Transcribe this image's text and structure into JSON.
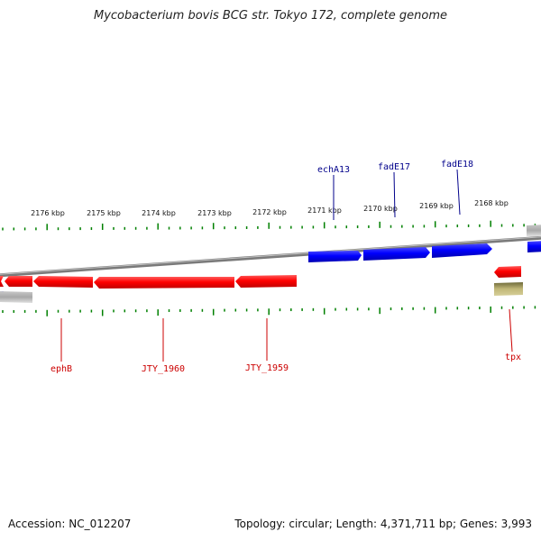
{
  "title": "Mycobacterium bovis BCG str. Tokyo 172, complete genome",
  "footer": {
    "accession": "Accession: NC_012207",
    "summary": "Topology: circular; Length: 4,371,711 bp; Genes: 3,993"
  },
  "colors": {
    "forward_gene": "#0000ff",
    "reverse_gene": "#ff0000",
    "backbone": "#808080",
    "ticks": "#008000",
    "other_feature": "#b8b070",
    "gray_feature": "#b0b0b0",
    "forward_label": "#00008b",
    "reverse_label": "#cc0000"
  },
  "ticks": {
    "major_labels": [
      "2176 kbp",
      "2175 kbp",
      "2174 kbp",
      "2173 kbp",
      "2172 kbp",
      "2171 kbp",
      "2170 kbp",
      "2169 kbp",
      "2168 kbp"
    ]
  },
  "gene_labels": {
    "forward": [
      "echA13",
      "fadE17",
      "fadE18"
    ],
    "reverse": [
      "ephB",
      "JTY_1960",
      "JTY_1959",
      "tpx"
    ]
  }
}
